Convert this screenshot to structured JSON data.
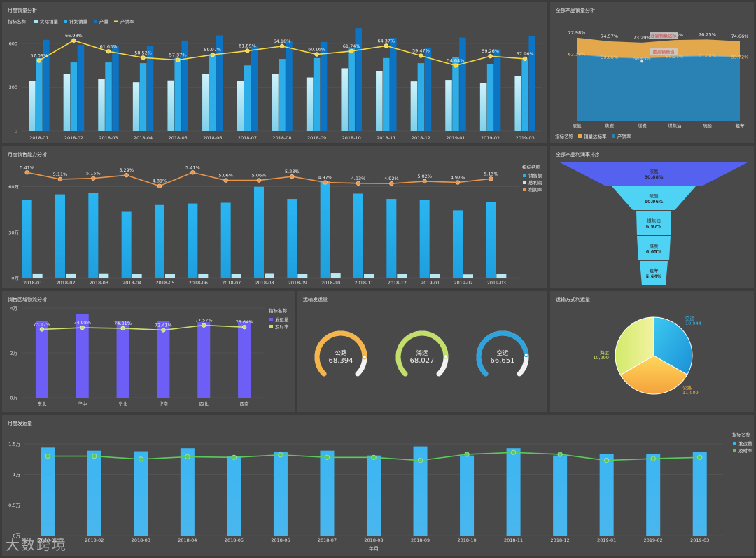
{
  "watermark": "大数跨境",
  "colors": {
    "actual": "#a7e4f2",
    "plan": "#2eaee8",
    "produce": "#0c74c2",
    "rate_line": "#f4d741",
    "sales": "#27b0ee",
    "profit": "#b9e7f2",
    "profit_rate": "#e9954b",
    "ship": "#6d5ff5",
    "ontime": "#c9de6c",
    "monthly_bar": "#3db3f0",
    "monthly_line": "#5cc95c",
    "funnel": "#4fd3f5",
    "funnel_top": "#5562f0"
  },
  "chart_data": [
    {
      "id": "monthly_sales",
      "type": "bar",
      "title": "月度销量分析",
      "legend_title": "指标名称",
      "categories": [
        "2018-01",
        "2018-02",
        "2018-03",
        "2018-04",
        "2018-05",
        "2018-06",
        "2018-07",
        "2018-08",
        "2018-09",
        "2018-10",
        "2018-11",
        "2018-12",
        "2019-01",
        "2019-02",
        "2019-03"
      ],
      "series": [
        {
          "name": "实际销量",
          "kind": "bar",
          "values": [
            345,
            392,
            355,
            335,
            347,
            390,
            345,
            390,
            367,
            430,
            408,
            340,
            350,
            330,
            375
          ]
        },
        {
          "name": "计划销量",
          "kind": "bar",
          "values": [
            500,
            470,
            470,
            465,
            500,
            527,
            450,
            494,
            500,
            565,
            500,
            465,
            505,
            458,
            490
          ]
        },
        {
          "name": "产量",
          "kind": "bar",
          "values": [
            625,
            590,
            580,
            585,
            620,
            655,
            580,
            615,
            610,
            705,
            638,
            570,
            640,
            560,
            648
          ]
        },
        {
          "name": "产销率",
          "kind": "line",
          "values": [
            57.09,
            66.98,
            61.63,
            58.52,
            57.37,
            59.97,
            61.89,
            64.18,
            60.16,
            61.74,
            64.37,
            59.47,
            54.64,
            59.26,
            57.96
          ],
          "labels": [
            "57.09%",
            "66.98%",
            "61.63%",
            "58.52%",
            "57.37%",
            "59.97%",
            "61.89%",
            "64.18%",
            "60.16%",
            "61.74%",
            "64.37%",
            "59.47%",
            "54.64%",
            "59.26%",
            "57.96%"
          ]
        }
      ],
      "y_ticks": [
        "0",
        "300",
        "600"
      ],
      "ylim": [
        0,
        720
      ]
    },
    {
      "id": "product_sales",
      "type": "area",
      "title": "全部产品销量分析",
      "legend_title": "指标名称",
      "categories": [
        "液氨",
        "焦炭",
        "煤炭",
        "煤焦油",
        "硫酸",
        "粗苯"
      ],
      "series": [
        {
          "name": "销量达标率",
          "values": [
            77.98,
            74.57,
            73.29,
            75.78,
            76.25,
            74.66
          ],
          "labels": [
            "77.98%",
            "74.57%",
            "73.29%",
            "75.78%",
            "76.25%",
            "74.66%"
          ]
        },
        {
          "name": "产销率",
          "values": [
            62.38,
            59.66,
            58.63,
            60.27,
            61.0,
            59.72
          ],
          "labels": [
            "62.38%",
            "59.66%",
            "58.63%",
            "60.27%",
            "61.00%",
            "59.72%"
          ]
        }
      ],
      "ylim": [
        0,
        85
      ],
      "tooltips": [
        "液氨销量达标",
        "最高销量值"
      ]
    },
    {
      "id": "sales_ability",
      "type": "bar",
      "title": "月度销售能力分析",
      "legend_title": "指标名称",
      "categories": [
        "2018-01",
        "2018-02",
        "2018-03",
        "2018-04",
        "2018-05",
        "2018-06",
        "2018-07",
        "2018-08",
        "2018-09",
        "2018-10",
        "2018-11",
        "2018-12",
        "2019-01",
        "2019-02",
        "2019-03"
      ],
      "series": [
        {
          "name": "销售额",
          "kind": "bar",
          "values": [
            51.5,
            55,
            56,
            43.5,
            48,
            49,
            49.5,
            60,
            52,
            64,
            55.5,
            52,
            51.5,
            44.5,
            50
          ]
        },
        {
          "name": "总利润",
          "kind": "bar",
          "values": [
            2.8,
            2.8,
            2.9,
            2.3,
            2.3,
            2.7,
            2.5,
            3,
            2.7,
            3.2,
            2.7,
            2.6,
            2.6,
            2.2,
            2.6
          ]
        },
        {
          "name": "利润率",
          "kind": "line",
          "values": [
            5.41,
            5.11,
            5.15,
            5.29,
            4.81,
            5.41,
            5.06,
            5.06,
            5.23,
            4.97,
            4.93,
            4.92,
            5.02,
            4.97,
            5.13
          ],
          "labels": [
            "5.41%",
            "5.11%",
            "5.15%",
            "5.29%",
            "4.81%",
            "5.41%",
            "5.06%",
            "5.06%",
            "5.23%",
            "4.97%",
            "4.93%",
            "4.92%",
            "5.02%",
            "4.97%",
            "5.13%"
          ]
        }
      ],
      "y_ticks": [
        "0万",
        "30万",
        "60万"
      ],
      "ylim": [
        0,
        70
      ]
    },
    {
      "id": "profit_rank",
      "type": "funnel",
      "title": "全部产品利润率排序",
      "items": [
        {
          "name": "液氨",
          "label": "50.88%",
          "value": 50.88
        },
        {
          "name": "硫酸",
          "label": "10.96%",
          "value": 10.96
        },
        {
          "name": "煤焦油",
          "label": "6.97%",
          "value": 6.97
        },
        {
          "name": "煤炭",
          "label": "6.65%",
          "value": 6.65
        },
        {
          "name": "粗苯",
          "label": "5.64%",
          "value": 5.64
        }
      ]
    },
    {
      "id": "region_logistics",
      "type": "bar",
      "title": "销售区域物流分析",
      "legend_title": "指标名称",
      "categories": [
        "东北",
        "华中",
        "华北",
        "华南",
        "西北",
        "西南"
      ],
      "series": [
        {
          "name": "发运量",
          "kind": "bar",
          "values": [
            3.43,
            3.73,
            3.43,
            3.43,
            3.37,
            3.43
          ]
        },
        {
          "name": "及时率",
          "kind": "line",
          "values": [
            73.17,
            74.98,
            74.31,
            72.41,
            77.57,
            75.64
          ],
          "labels": [
            "73.17%",
            "74.98%",
            "74.31%",
            "72.41%",
            "77.57%",
            "75.64%"
          ]
        }
      ],
      "y_ticks": [
        "0万",
        "2万",
        "4万"
      ],
      "ylim": [
        0,
        4
      ]
    },
    {
      "id": "transport_volume",
      "type": "gauge",
      "title": "运输发运量",
      "items": [
        {
          "name": "公路",
          "value_label": "68,394",
          "value": 68394,
          "color": "#f5b54a"
        },
        {
          "name": "海运",
          "value_label": "68,027",
          "value": 68027,
          "color": "#c3df6a"
        },
        {
          "name": "空运",
          "value_label": "66,651",
          "value": 66651,
          "color": "#2fa3de"
        }
      ]
    },
    {
      "id": "transport_mode",
      "type": "pie",
      "title": "运输方式利运量",
      "slices": [
        {
          "name": "空运",
          "value": 10944,
          "value_label": "10,944"
        },
        {
          "name": "公路",
          "value": 11009,
          "value_label": "11,009"
        },
        {
          "name": "海运",
          "value": 10999,
          "value_label": "10,999"
        }
      ]
    },
    {
      "id": "monthly_ship",
      "type": "bar",
      "title": "月度发运量",
      "legend_title": "指标名称",
      "xlabel": "年月",
      "categories": [
        "2018-01",
        "2018-02",
        "2018-03",
        "2018-04",
        "2018-05",
        "2018-06",
        "2018-07",
        "2018-08",
        "2018-09",
        "2018-10",
        "2018-11",
        "2018-12",
        "2019-01",
        "2019-02",
        "2019-03"
      ],
      "series": [
        {
          "name": "发运量",
          "kind": "bar",
          "values": [
            1.44,
            1.39,
            1.38,
            1.43,
            1.3,
            1.37,
            1.39,
            1.31,
            1.46,
            1.31,
            1.43,
            1.31,
            1.33,
            1.33,
            1.37
          ]
        },
        {
          "name": "及时率",
          "kind": "line",
          "values": [
            1.3,
            1.3,
            1.25,
            1.29,
            1.28,
            1.32,
            1.28,
            1.28,
            1.23,
            1.33,
            1.36,
            1.33,
            1.23,
            1.26,
            1.28
          ]
        }
      ],
      "y_ticks": [
        "0万",
        "0.5万",
        "1万",
        "1.5万"
      ],
      "ylim": [
        0,
        1.65
      ]
    }
  ]
}
